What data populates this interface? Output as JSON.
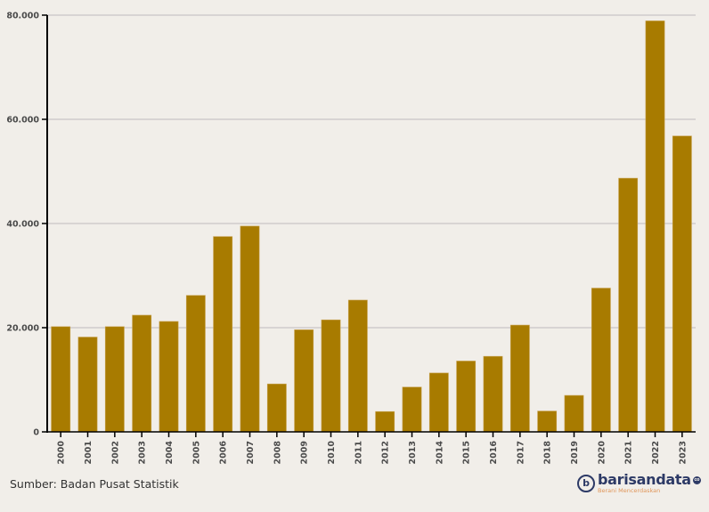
{
  "chart_data": {
    "type": "bar",
    "title": "",
    "xlabel": "",
    "ylabel": "",
    "ylim": [
      0,
      80000
    ],
    "yticks": [
      0,
      20000,
      40000,
      60000,
      80000
    ],
    "ytick_labels": [
      "0",
      "20.000",
      "40.000",
      "60.000",
      "80.000"
    ],
    "grid": true,
    "legend": null,
    "categories": [
      "2000",
      "2001",
      "2002",
      "2003",
      "2004",
      "2005",
      "2006",
      "2007",
      "2008",
      "2009",
      "2010",
      "2011",
      "2012",
      "2013",
      "2014",
      "2015",
      "2016",
      "2017",
      "2018",
      "2019",
      "2020",
      "2021",
      "2022",
      "2023"
    ],
    "values": [
      20200,
      18200,
      20200,
      22400,
      21200,
      26200,
      37500,
      39500,
      9200,
      19600,
      21500,
      25300,
      3900,
      8600,
      11300,
      13600,
      14500,
      20500,
      4000,
      7000,
      27600,
      48700,
      78900,
      56800
    ],
    "bar_color": "#a87b00"
  },
  "footer": {
    "source": "Sumber: Badan Pusat Statistik",
    "logo": {
      "name": "barisandata",
      "suffix": "co",
      "tagline": "Berani Mencerdaskan"
    }
  },
  "colors": {
    "background": "#f1eee9",
    "bar": "#a87b00",
    "grid": "#cfcccc",
    "axis": "#000000",
    "logo_primary": "#2d3a66",
    "logo_accent": "#e0965a"
  }
}
